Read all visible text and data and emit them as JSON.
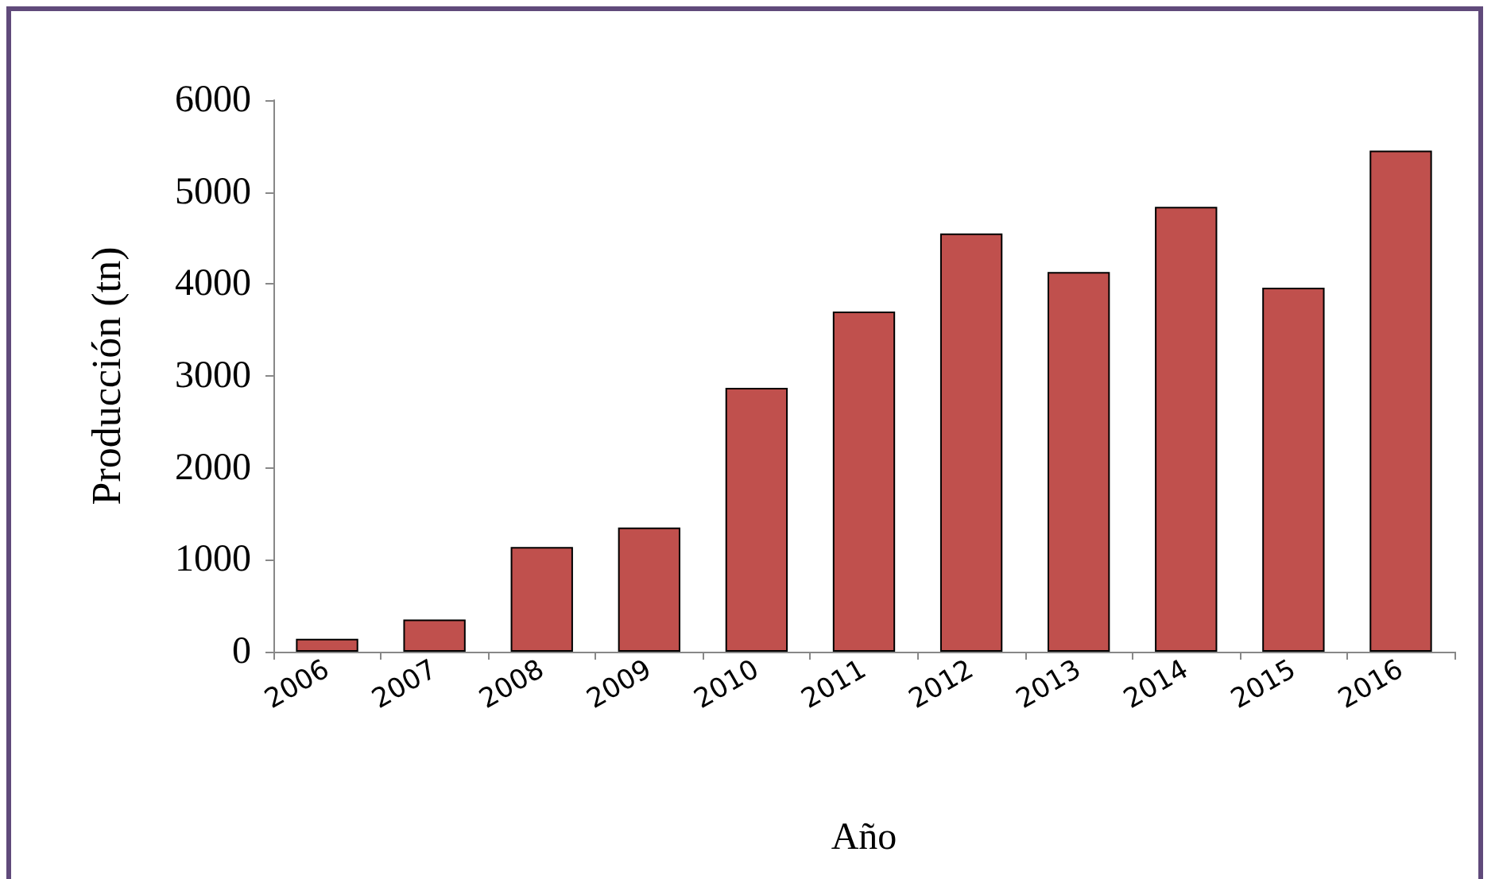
{
  "chart_data": {
    "type": "bar",
    "xlabel": "Año",
    "ylabel": "Producción (tn)",
    "categories": [
      "2006",
      "2007",
      "2008",
      "2009",
      "2010",
      "2011",
      "2012",
      "2013",
      "2014",
      "2015",
      "2016"
    ],
    "values": [
      140,
      350,
      1140,
      1350,
      2870,
      3700,
      4550,
      4130,
      4840,
      3960,
      5450
    ],
    "color": "#c0504d",
    "ylim": [
      0,
      6000
    ],
    "yticks": [
      0,
      1000,
      2000,
      3000,
      4000,
      5000,
      6000
    ],
    "grid": false
  }
}
